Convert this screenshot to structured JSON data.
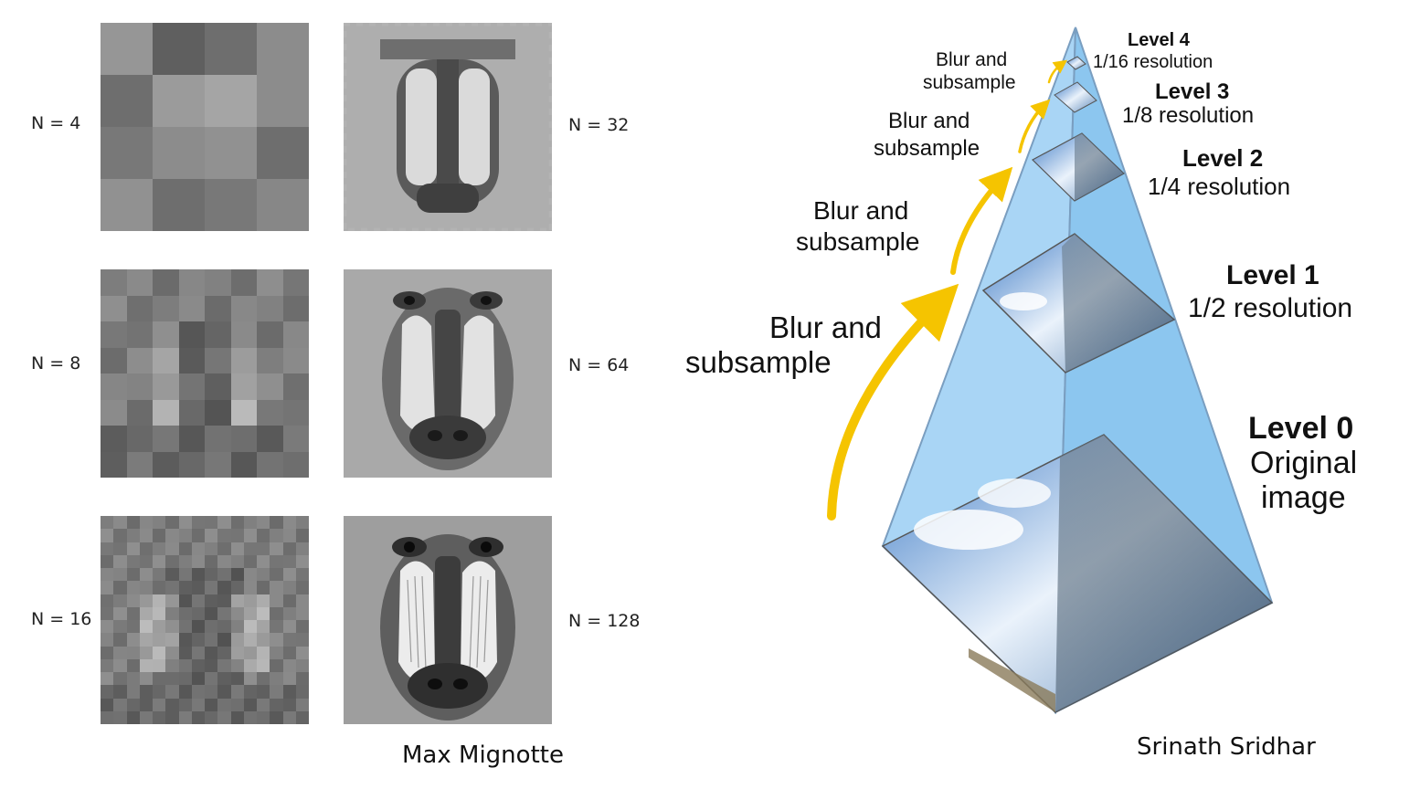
{
  "left_panel": {
    "credit": "Max Mignotte",
    "resolutions": [
      {
        "label": "N = 4"
      },
      {
        "label": "N = 8"
      },
      {
        "label": "N = 16"
      },
      {
        "label": "N = 32"
      },
      {
        "label": "N = 64"
      },
      {
        "label": "N = 128"
      }
    ]
  },
  "pyramid": {
    "credit": "Srinath Sridhar",
    "levels": [
      {
        "title": "Level 4",
        "subtitle": "1/16 resolution"
      },
      {
        "title": "Level 3",
        "subtitle": "1/8 resolution"
      },
      {
        "title": "Level 2",
        "subtitle": "1/4 resolution"
      },
      {
        "title": "Level 1",
        "subtitle": "1/2 resolution"
      },
      {
        "title": "Level 0",
        "subtitle_line1": "Original",
        "subtitle_line2": "image"
      }
    ],
    "step_label": {
      "line1": "Blur and",
      "line2": "subsample"
    },
    "colors": {
      "arrow": "#f5c400",
      "pyramid_fill": "#9fd0f3",
      "pyramid_edge": "#6a8fb0",
      "sky": "#4a86c8"
    }
  }
}
